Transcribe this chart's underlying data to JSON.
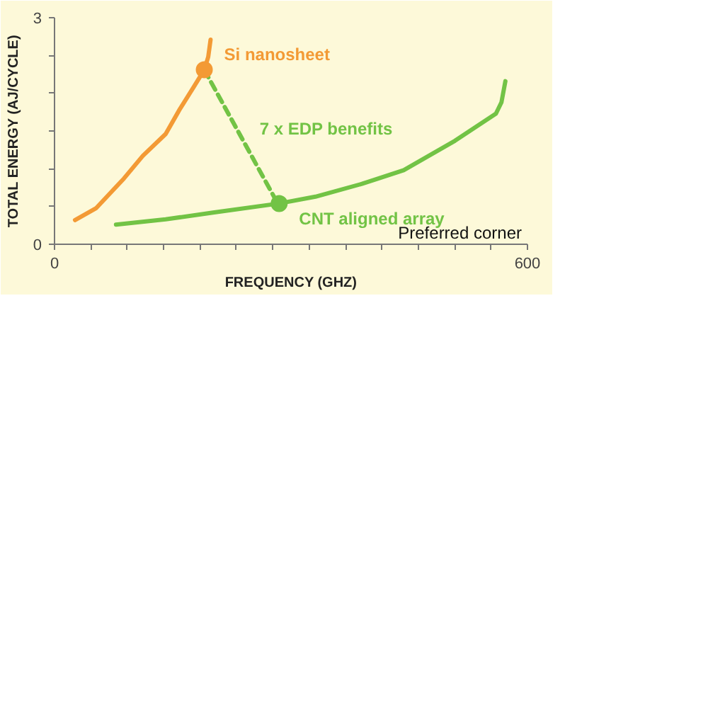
{
  "chart_data": {
    "type": "line",
    "xlabel": "FREQUENCY (GHZ)",
    "ylabel": "TOTAL ENERGY (AJ/CYCLE)",
    "xlim": [
      0,
      600
    ],
    "ylim": [
      0,
      3
    ],
    "xticks": [
      0,
      {
        "value": 46.15,
        "label": null
      },
      {
        "value": 92.31,
        "label": null
      },
      {
        "value": 138.46,
        "label": null
      },
      {
        "value": 184.62,
        "label": null
      },
      {
        "value": 230.77,
        "label": null
      },
      {
        "value": 276.92,
        "label": null
      },
      {
        "value": 323.08,
        "label": null
      },
      {
        "value": 369.23,
        "label": null
      },
      {
        "value": 415.38,
        "label": null
      },
      {
        "value": 461.54,
        "label": null
      },
      {
        "value": 507.69,
        "label": null
      },
      {
        "value": 553.85,
        "label": null
      },
      600
    ],
    "yticks": [
      0,
      {
        "value": 0.5,
        "label": null
      },
      {
        "value": 1,
        "label": null
      },
      {
        "value": 1.5,
        "label": null
      },
      {
        "value": 2,
        "label": null
      },
      {
        "value": 2.5,
        "label": null
      },
      3
    ],
    "grid": false,
    "marker": "none",
    "line_style": "solid",
    "series": [
      {
        "color": "#f39a35",
        "x": [
          26,
          53,
          88,
          112,
          141,
          159,
          177,
          190,
          195,
          198
        ],
        "values": [
          0.32,
          0.48,
          0.87,
          1.17,
          1.46,
          1.79,
          2.09,
          2.31,
          2.48,
          2.71
        ]
      },
      {
        "color": "#72c345",
        "x": [
          78,
          141,
          201,
          285,
          331,
          390,
          443,
          508,
          560,
          567,
          572
        ],
        "values": [
          0.26,
          0.33,
          0.42,
          0.54,
          0.63,
          0.8,
          0.98,
          1.37,
          1.73,
          1.88,
          2.16
        ]
      },
      {
        "name": "7 x EDP benefits",
        "color": "#72c345",
        "line_style": "dashed",
        "x": [
          190,
          280
        ],
        "values": [
          2.31,
          0.6
        ]
      },
      {
        "name": "Si nanosheet",
        "type": "scatter",
        "marker": "circle",
        "color": "#f39a35",
        "x": [
          190
        ],
        "values": [
          2.31
        ]
      },
      {
        "name": "CNT aligned array",
        "type": "scatter",
        "marker": "circle",
        "color": "#72c345",
        "x": [
          285
        ],
        "values": [
          0.54
        ]
      }
    ],
    "annotations": [
      "Preferred corner"
    ]
  }
}
